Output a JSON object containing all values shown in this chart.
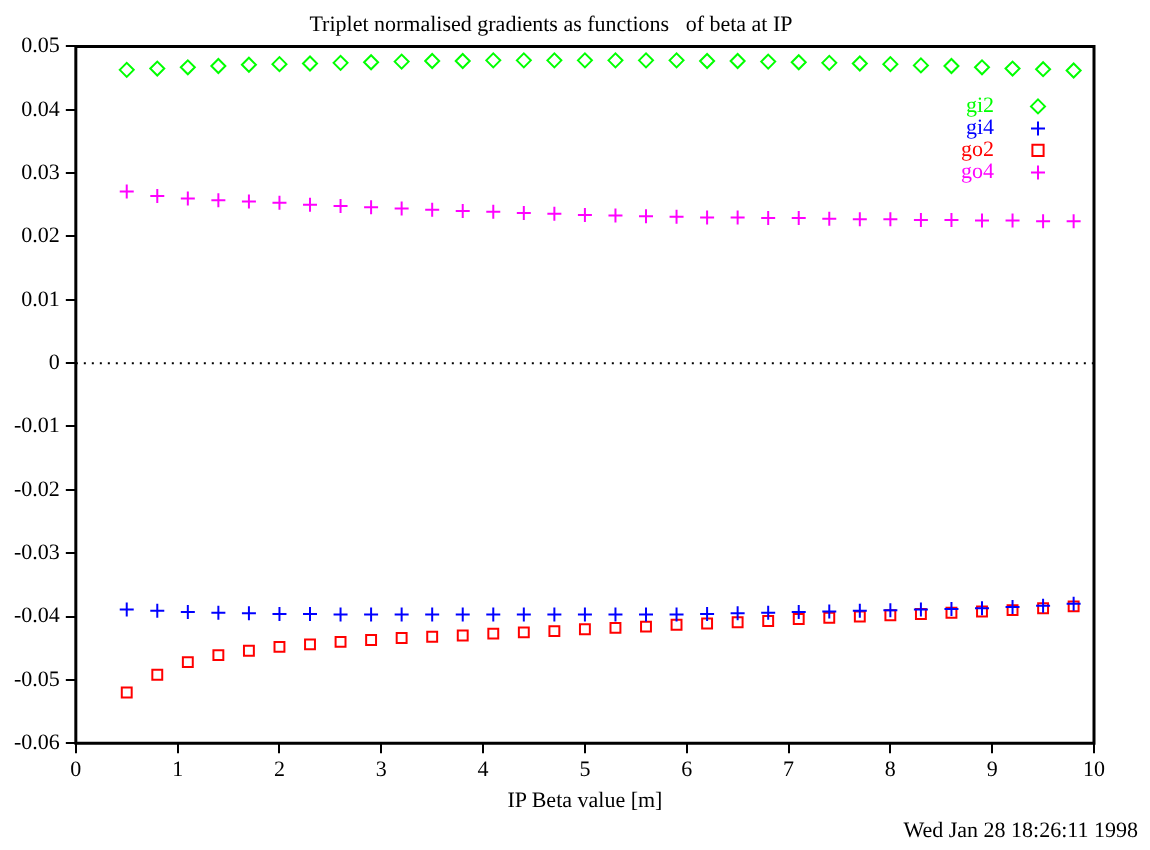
{
  "chart_data": {
    "type": "scatter",
    "title": "Triplet normalised gradients as functions   of beta at IP",
    "xlabel": "IP Beta value [m]",
    "x": [
      0.5,
      0.8,
      1.1,
      1.4,
      1.7,
      2.0,
      2.3,
      2.6,
      2.9,
      3.2,
      3.5,
      3.8,
      4.1,
      4.4,
      4.7,
      5.0,
      5.3,
      5.6,
      5.9,
      6.2,
      6.5,
      6.8,
      7.1,
      7.4,
      7.7,
      8.0,
      8.3,
      8.6,
      8.9,
      9.2,
      9.5,
      9.8
    ],
    "series": [
      {
        "name": "gi2",
        "color": "#00ff00",
        "marker": "diamond",
        "values": [
          0.0463,
          0.0465,
          0.0467,
          0.0469,
          0.0471,
          0.0472,
          0.0473,
          0.0474,
          0.0475,
          0.0476,
          0.0477,
          0.0477,
          0.0478,
          0.0478,
          0.0478,
          0.0478,
          0.0478,
          0.0478,
          0.0478,
          0.0477,
          0.0477,
          0.0476,
          0.0475,
          0.0474,
          0.0473,
          0.0472,
          0.047,
          0.0469,
          0.0467,
          0.0465,
          0.0464,
          0.0462
        ]
      },
      {
        "name": "gi4",
        "color": "#0000ff",
        "marker": "cross",
        "values": [
          -0.0389,
          -0.0391,
          -0.0393,
          -0.0394,
          -0.0395,
          -0.0396,
          -0.0396,
          -0.0397,
          -0.0397,
          -0.0397,
          -0.0397,
          -0.0397,
          -0.0397,
          -0.0397,
          -0.0397,
          -0.0397,
          -0.0397,
          -0.0397,
          -0.0397,
          -0.0396,
          -0.0395,
          -0.0394,
          -0.0393,
          -0.0392,
          -0.0391,
          -0.039,
          -0.0389,
          -0.0388,
          -0.0387,
          -0.0385,
          -0.0383,
          -0.038
        ]
      },
      {
        "name": "go2",
        "color": "#ff0000",
        "marker": "square",
        "values": [
          -0.052,
          -0.0492,
          -0.0472,
          -0.0461,
          -0.0454,
          -0.0448,
          -0.0444,
          -0.044,
          -0.0437,
          -0.0434,
          -0.0432,
          -0.043,
          -0.0427,
          -0.0425,
          -0.0423,
          -0.042,
          -0.0418,
          -0.0416,
          -0.0413,
          -0.0411,
          -0.0409,
          -0.0407,
          -0.0404,
          -0.0402,
          -0.04,
          -0.0398,
          -0.0396,
          -0.0394,
          -0.0392,
          -0.039,
          -0.0387,
          -0.0384
        ]
      },
      {
        "name": "go4",
        "color": "#ff00ff",
        "marker": "cross",
        "values": [
          0.0271,
          0.0264,
          0.026,
          0.0257,
          0.0255,
          0.0253,
          0.025,
          0.0248,
          0.0246,
          0.0244,
          0.0242,
          0.024,
          0.0239,
          0.0237,
          0.0236,
          0.0234,
          0.0233,
          0.0232,
          0.0231,
          0.023,
          0.023,
          0.0229,
          0.0229,
          0.0228,
          0.0227,
          0.0227,
          0.0226,
          0.0226,
          0.0225,
          0.0225,
          0.0224,
          0.0224
        ]
      }
    ],
    "xlim": [
      0,
      10
    ],
    "xticks": [
      0,
      1,
      2,
      3,
      4,
      5,
      6,
      7,
      8,
      9,
      10
    ],
    "ylim": [
      -0.06,
      0.05
    ],
    "yticks": [
      -0.06,
      -0.05,
      -0.04,
      -0.03,
      -0.02,
      -0.01,
      0,
      0.01,
      0.02,
      0.03,
      0.04,
      0.05
    ],
    "ref_lines": [
      {
        "axis": "y",
        "value": 0,
        "color": "#000000",
        "line_style": "dotted"
      }
    ],
    "legend": "top right",
    "grid": false,
    "annotations": [
      "Wed Jan 28 18:26:11 1998"
    ]
  }
}
